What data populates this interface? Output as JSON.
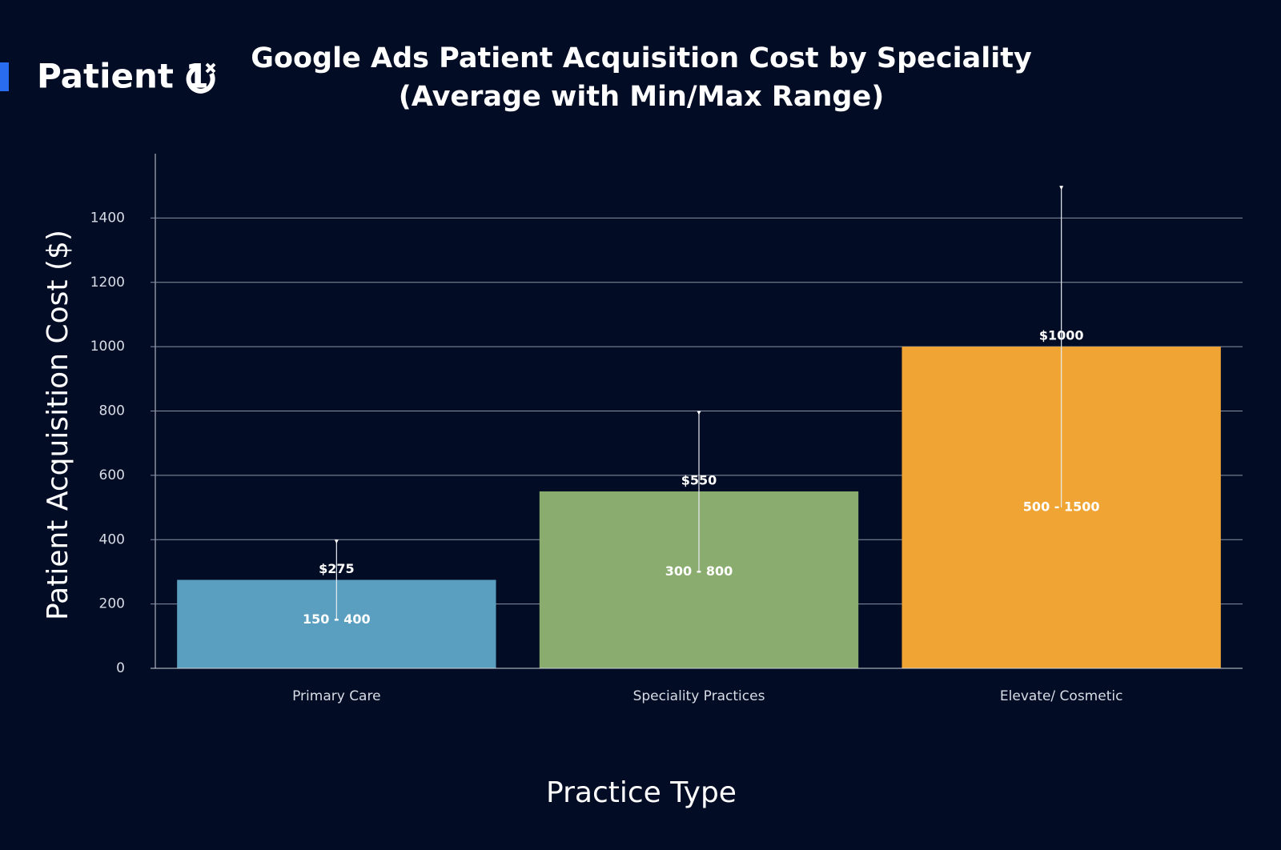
{
  "logo": "Patient 1",
  "chart_data": {
    "type": "bar",
    "title": [
      "Google Ads Patient Acquisition Cost by Speciality",
      "(Average with Min/Max Range)"
    ],
    "xlabel": "Practice Type",
    "ylabel": "Patient Acquisition Cost ($)",
    "categories": [
      "Primary Care",
      "Speciality Practices",
      "Elevate/ Cosmetic"
    ],
    "values": [
      275,
      550,
      1000
    ],
    "value_labels": [
      "$275",
      "$550",
      "$1000"
    ],
    "min": [
      150,
      300,
      500
    ],
    "max": [
      400,
      800,
      1500
    ],
    "range_labels": [
      "150 - 400",
      "300 - 800",
      "500 - 1500"
    ],
    "colors": [
      "#5a9fbf",
      "#8aad6f",
      "#f0a433"
    ],
    "ylim": [
      0,
      1600
    ],
    "yticks": [
      0,
      200,
      400,
      600,
      800,
      1000,
      1200,
      1400
    ],
    "grid": true
  }
}
